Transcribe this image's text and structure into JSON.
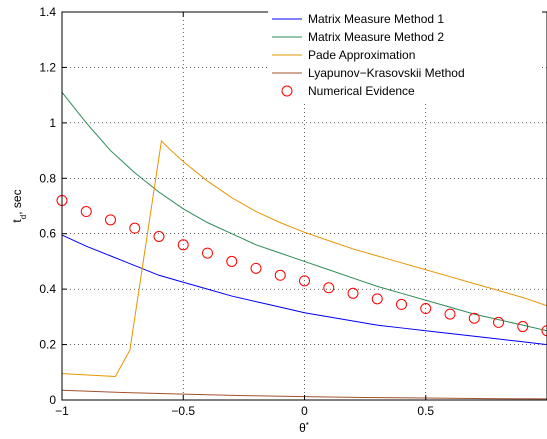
{
  "chart_data": {
    "type": "line",
    "xlabel": "θ*",
    "ylabel": "t_d, sec",
    "xlim": [
      -1,
      1
    ],
    "ylim": [
      0,
      1.4
    ],
    "x_ticks": [
      -1,
      -0.5,
      0,
      0.5
    ],
    "x_tick_labels": [
      "−1",
      "−0.5",
      "0",
      "0.5"
    ],
    "y_ticks": [
      0,
      0.2,
      0.4,
      0.6,
      0.8,
      1,
      1.2,
      1.4
    ],
    "y_tick_labels": [
      "0",
      "0.2",
      "0.4",
      "0.6",
      "0.8",
      "1",
      "1.2",
      "1.4"
    ],
    "grid": true,
    "legend_position": "top-right",
    "series": [
      {
        "name": "Matrix Measure Method 1",
        "color": "#0000ff",
        "style": "line",
        "x": [
          -1,
          -0.9,
          -0.8,
          -0.7,
          -0.6,
          -0.5,
          -0.4,
          -0.3,
          -0.2,
          -0.1,
          0,
          0.1,
          0.2,
          0.3,
          0.4,
          0.5,
          0.6,
          0.7,
          0.8,
          0.9,
          1
        ],
        "y": [
          0.595,
          0.555,
          0.52,
          0.485,
          0.45,
          0.425,
          0.4,
          0.375,
          0.355,
          0.335,
          0.315,
          0.3,
          0.285,
          0.27,
          0.26,
          0.25,
          0.24,
          0.23,
          0.22,
          0.21,
          0.2
        ]
      },
      {
        "name": "Matrix Measure Method 2",
        "color": "#2e8b57",
        "style": "line",
        "x": [
          -1,
          -0.9,
          -0.8,
          -0.7,
          -0.6,
          -0.5,
          -0.4,
          -0.3,
          -0.2,
          -0.1,
          0,
          0.1,
          0.2,
          0.3,
          0.4,
          0.5,
          0.6,
          0.7,
          0.8,
          0.9,
          1
        ],
        "y": [
          1.11,
          1.0,
          0.9,
          0.82,
          0.75,
          0.69,
          0.64,
          0.6,
          0.56,
          0.53,
          0.5,
          0.47,
          0.44,
          0.41,
          0.385,
          0.36,
          0.335,
          0.31,
          0.29,
          0.27,
          0.25
        ]
      },
      {
        "name": "Pade Approximation",
        "color": "#e69500",
        "style": "line",
        "x": [
          -1,
          -0.78,
          -0.72,
          -0.59,
          -0.55,
          -0.5,
          -0.4,
          -0.3,
          -0.2,
          -0.1,
          0,
          0.1,
          0.2,
          0.3,
          0.4,
          0.5,
          0.6,
          0.7,
          0.8,
          0.9,
          1
        ],
        "y": [
          0.095,
          0.085,
          0.18,
          0.935,
          0.9,
          0.86,
          0.79,
          0.73,
          0.68,
          0.64,
          0.605,
          0.575,
          0.545,
          0.52,
          0.495,
          0.47,
          0.445,
          0.42,
          0.395,
          0.37,
          0.34
        ]
      },
      {
        "name": "Lyapunov−Krasovskii Method",
        "color": "#a0522d",
        "style": "line",
        "x": [
          -1,
          -0.75,
          -0.5,
          -0.25,
          0,
          0.25,
          0.5,
          0.75,
          1
        ],
        "y": [
          0.035,
          0.027,
          0.021,
          0.016,
          0.012,
          0.009,
          0.007,
          0.005,
          0.004
        ]
      },
      {
        "name": "Numerical Evidence",
        "color": "#ff0000",
        "style": "markers",
        "marker": "circle",
        "x": [
          -1,
          -0.9,
          -0.8,
          -0.7,
          -0.6,
          -0.5,
          -0.4,
          -0.3,
          -0.2,
          -0.1,
          0,
          0.1,
          0.2,
          0.3,
          0.4,
          0.5,
          0.6,
          0.7,
          0.8,
          0.9,
          1
        ],
        "y": [
          0.72,
          0.68,
          0.65,
          0.62,
          0.59,
          0.56,
          0.53,
          0.5,
          0.475,
          0.45,
          0.43,
          0.405,
          0.385,
          0.365,
          0.345,
          0.33,
          0.31,
          0.295,
          0.28,
          0.265,
          0.25
        ]
      }
    ]
  }
}
